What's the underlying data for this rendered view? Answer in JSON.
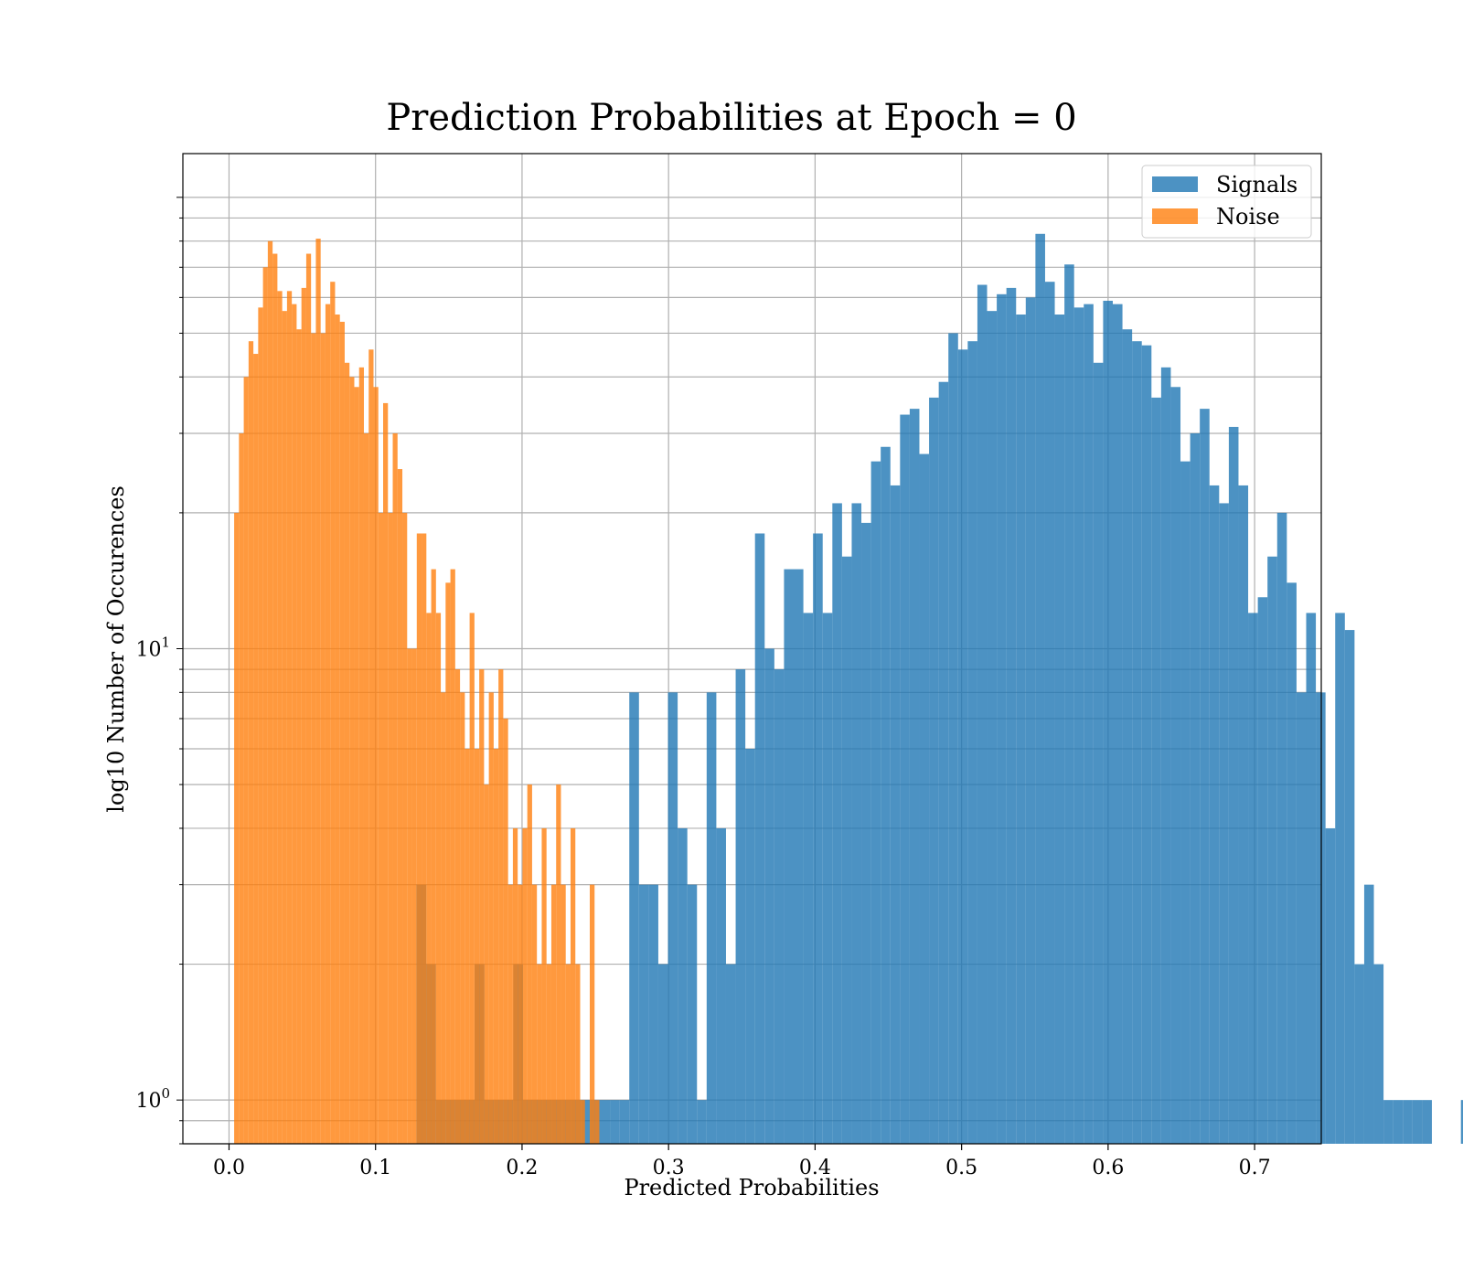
{
  "chart_data": {
    "type": "bar",
    "title": "Prediction Probabilities at Epoch = 0",
    "xlabel": "Predicted Probabilities",
    "ylabel": "log10 Number of Occurences",
    "y_scale": "log",
    "xlim": [
      -0.0315,
      0.7455
    ],
    "ylim": [
      0.8,
      125
    ],
    "grid": true,
    "legend_position": "top-right",
    "x_ticks": [
      "0.0",
      "0.1",
      "0.2",
      "0.3",
      "0.4",
      "0.5",
      "0.6",
      "0.7"
    ],
    "x_tick_values": [
      0.0,
      0.1,
      0.2,
      0.3,
      0.4,
      0.5,
      0.6,
      0.7
    ],
    "y_ticks": [
      {
        "base": "10",
        "exp": "0",
        "value": 1
      },
      {
        "base": "10",
        "exp": "1",
        "value": 10
      }
    ],
    "series": [
      {
        "name": "Signals",
        "color": "#1f77b4",
        "opacity": 0.8,
        "bin_start": 0.128,
        "bin_width": 0.0066,
        "values": [
          3,
          2,
          1,
          1,
          1,
          1,
          2,
          1,
          1,
          1,
          2,
          1,
          1,
          1,
          1,
          1,
          1,
          1,
          1,
          1,
          1,
          1,
          8,
          3,
          3,
          2,
          8,
          4,
          3,
          1,
          8,
          4,
          2,
          9,
          6,
          18,
          10,
          9,
          15,
          15,
          12,
          18,
          12,
          21,
          16,
          21,
          19,
          26,
          28,
          23,
          33,
          34,
          27,
          36,
          39,
          50,
          46,
          48,
          64,
          56,
          61,
          63,
          55,
          60,
          83,
          65,
          55,
          71,
          57,
          58,
          43,
          59,
          58,
          51,
          48,
          47,
          36,
          42,
          38,
          26,
          30,
          34,
          23,
          21,
          31,
          23,
          12,
          13,
          16,
          20,
          14,
          8,
          12,
          8,
          4,
          12,
          11,
          2,
          3,
          2,
          1,
          1,
          1,
          1,
          1,
          0,
          0,
          0,
          1,
          1
        ]
      },
      {
        "name": "Noise",
        "color": "#ff7f0e",
        "opacity": 0.8,
        "bin_start": 0.0035,
        "bin_width": 0.00328,
        "values": [
          20,
          30,
          40,
          48,
          45,
          57,
          70,
          80,
          75,
          62,
          56,
          62,
          58,
          51,
          63,
          75,
          50,
          81,
          50,
          58,
          65,
          55,
          53,
          43,
          40,
          38,
          42,
          30,
          46,
          38,
          20,
          35,
          20,
          30,
          25,
          20,
          10,
          10,
          18,
          18,
          12,
          15,
          12,
          8,
          14,
          15,
          9,
          8,
          6,
          12,
          6,
          9,
          5,
          8,
          6,
          9,
          7,
          3,
          4,
          3,
          4,
          5,
          3,
          2,
          4,
          2,
          3,
          5,
          3,
          2,
          4,
          2,
          1,
          0,
          3,
          1
        ]
      }
    ]
  }
}
